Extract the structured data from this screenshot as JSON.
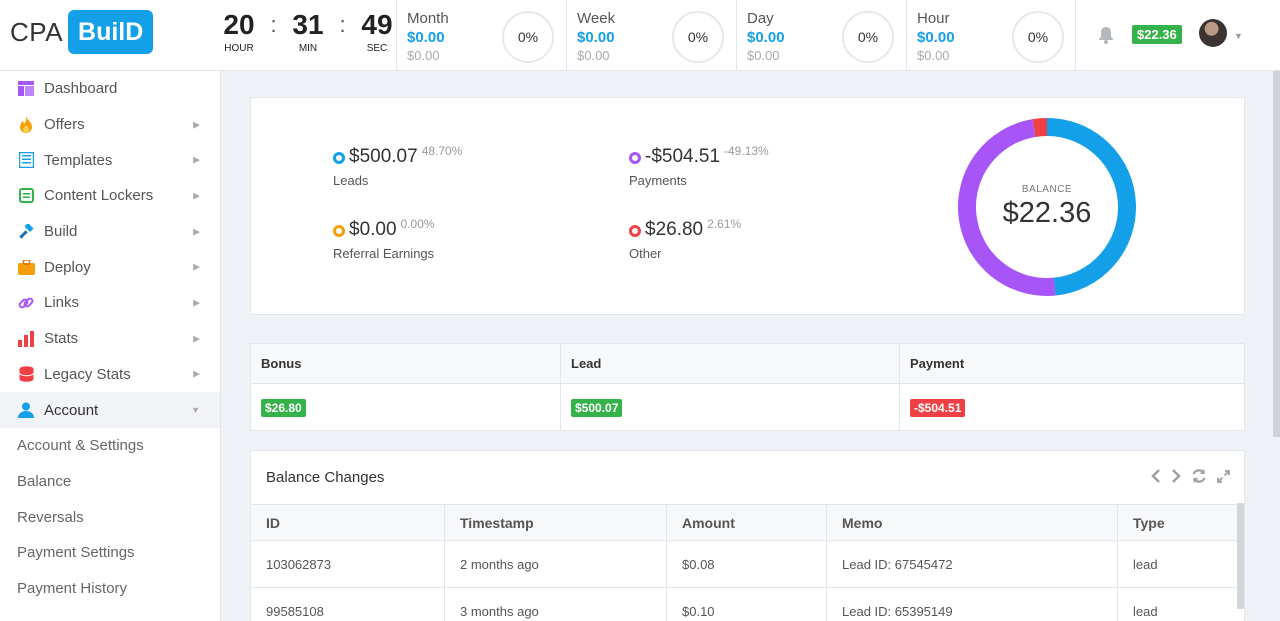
{
  "brand": {
    "cpa": "CPA",
    "build": "BuilD"
  },
  "timer": {
    "hour": "20",
    "hour_label": "HOUR",
    "min": "31",
    "min_label": "MIN",
    "sec": "49",
    "sec_label": "SEC",
    "sep": ":"
  },
  "periods": [
    {
      "name": "Month",
      "value": "$0.00",
      "sub": "$0.00",
      "pct": "0%"
    },
    {
      "name": "Week",
      "value": "$0.00",
      "sub": "$0.00",
      "pct": "0%"
    },
    {
      "name": "Day",
      "value": "$0.00",
      "sub": "$0.00",
      "pct": "0%"
    },
    {
      "name": "Hour",
      "value": "$0.00",
      "sub": "$0.00",
      "pct": "0%"
    }
  ],
  "header": {
    "balance_badge": "$22.36",
    "bell_icon": "bell-icon",
    "avatar": "user-avatar"
  },
  "sidebar": {
    "items": [
      {
        "label": "Dashboard",
        "icon": "dashboard-icon",
        "color": "#a855f7"
      },
      {
        "label": "Offers",
        "icon": "fire-icon",
        "color": "#f59e0b"
      },
      {
        "label": "Templates",
        "icon": "template-icon",
        "color": "#13a0e8"
      },
      {
        "label": "Content Lockers",
        "icon": "locker-icon",
        "color": "#35b34a"
      },
      {
        "label": "Build",
        "icon": "hammer-icon",
        "color": "#13a0e8"
      },
      {
        "label": "Deploy",
        "icon": "briefcase-icon",
        "color": "#f59e0b"
      },
      {
        "label": "Links",
        "icon": "link-icon",
        "color": "#a855f7"
      },
      {
        "label": "Stats",
        "icon": "bar-chart-icon",
        "color": "#ef4145"
      },
      {
        "label": "Legacy Stats",
        "icon": "database-icon",
        "color": "#ef4145"
      },
      {
        "label": "Account",
        "icon": "user-icon",
        "color": "#13a0e8"
      }
    ],
    "sub_items": [
      "Account & Settings",
      "Balance",
      "Reversals",
      "Payment Settings",
      "Payment History"
    ]
  },
  "summary": {
    "leads": {
      "amount": "$500.07",
      "pct": "48.70%",
      "label": "Leads",
      "color": "#13a0e8"
    },
    "payments": {
      "amount": "-$504.51",
      "pct": "-49.13%",
      "label": "Payments",
      "color": "#a855f7"
    },
    "referral": {
      "amount": "$0.00",
      "pct": "0.00%",
      "label": "Referral Earnings",
      "color": "#f59e0b"
    },
    "other": {
      "amount": "$26.80",
      "pct": "2.61%",
      "label": "Other",
      "color": "#ef4145"
    },
    "balance_label": "BALANCE",
    "balance_value": "$22.36"
  },
  "chart_data": {
    "type": "pie",
    "title": "",
    "categories": [
      "Leads",
      "Payments",
      "Referral Earnings",
      "Other"
    ],
    "values": [
      48.7,
      49.13,
      0.0,
      2.61
    ],
    "colors": [
      "#13a0e8",
      "#a855f7",
      "#f59e0b",
      "#ef4145"
    ],
    "donut": true
  },
  "totals": {
    "headers": [
      "Bonus",
      "Lead",
      "Payment"
    ],
    "values": [
      "$26.80",
      "$500.07",
      "-$504.51"
    ]
  },
  "changes": {
    "title": "Balance Changes",
    "columns": [
      "ID",
      "Timestamp",
      "Amount",
      "Memo",
      "Type"
    ],
    "rows": [
      [
        "103062873",
        "2 months ago",
        "$0.08",
        "Lead ID: 67545472",
        "lead"
      ],
      [
        "99585108",
        "3 months ago",
        "$0.10",
        "Lead ID: 65395149",
        "lead"
      ]
    ]
  }
}
